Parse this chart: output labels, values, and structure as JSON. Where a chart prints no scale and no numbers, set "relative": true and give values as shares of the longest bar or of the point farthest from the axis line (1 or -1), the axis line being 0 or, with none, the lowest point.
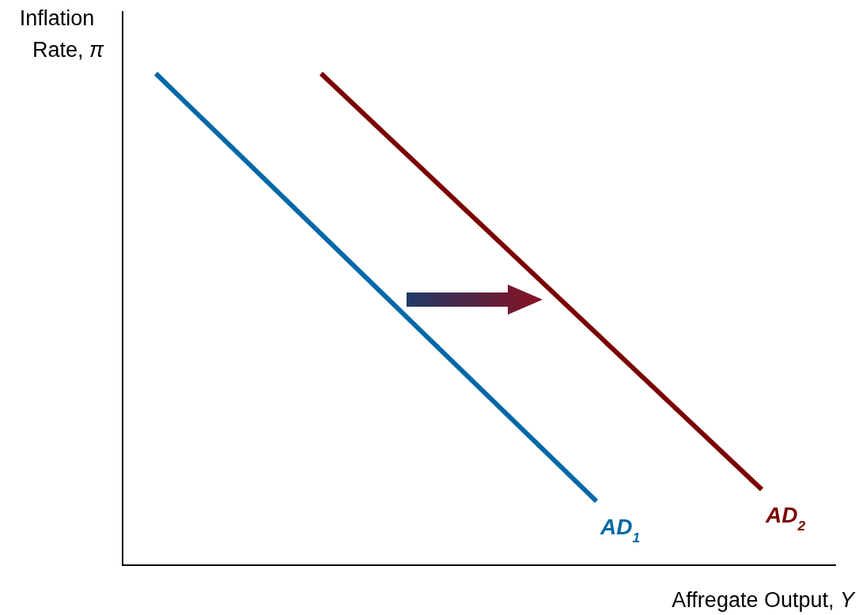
{
  "chart_data": {
    "type": "line",
    "relative": true,
    "xlabel": "Affregate Output, Y",
    "ylabel": "Inflation Rate, π",
    "line_style": "solid",
    "categories": [
      null,
      null,
      null,
      null,
      null,
      null,
      null,
      null,
      null,
      null,
      null,
      null
    ],
    "series": [
      {
        "name": "AD$_{1}$",
        "color": "#0068a8",
        "values": [
          1,
          null,
          null,
          null,
          null,
          null,
          null,
          null,
          0.13,
          null,
          null,
          null
        ]
      },
      {
        "name": "AD$_{2}$",
        "color": "#7b0000",
        "values": [
          null,
          null,
          null,
          1,
          null,
          null,
          null,
          null,
          null,
          null,
          null,
          0.154
        ]
      }
    ]
  }
}
